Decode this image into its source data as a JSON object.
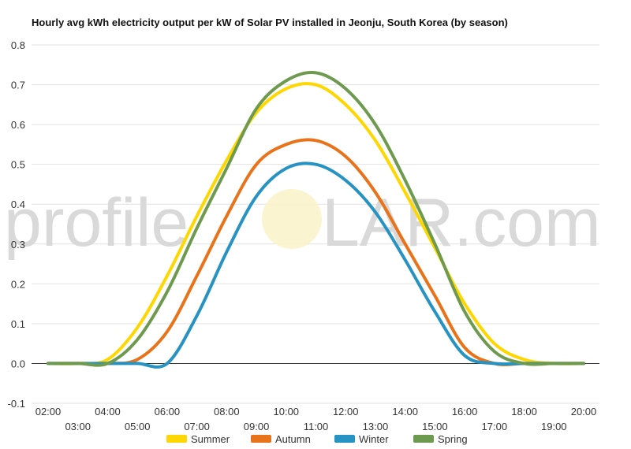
{
  "chart_data": {
    "type": "line",
    "title": "Hourly avg kWh electricity output per kW of Solar PV installed in Jeonju, South Korea (by season)",
    "xlabel": "",
    "ylabel": "",
    "x": [
      "02:00",
      "03:00",
      "04:00",
      "05:00",
      "06:00",
      "07:00",
      "08:00",
      "09:00",
      "10:00",
      "11:00",
      "12:00",
      "13:00",
      "14:00",
      "15:00",
      "16:00",
      "17:00",
      "18:00",
      "19:00",
      "20:00"
    ],
    "x_tick_labels_top": [
      "02:00",
      "04:00",
      "06:00",
      "08:00",
      "10:00",
      "12:00",
      "14:00",
      "16:00",
      "18:00",
      "20:00"
    ],
    "x_tick_labels_bottom": [
      "03:00",
      "05:00",
      "07:00",
      "09:00",
      "11:00",
      "13:00",
      "15:00",
      "17:00",
      "19:00"
    ],
    "ylim": [
      -0.1,
      0.8
    ],
    "y_ticks": [
      "-0.1",
      "0.0",
      "0.1",
      "0.2",
      "0.3",
      "0.4",
      "0.5",
      "0.6",
      "0.7",
      "0.8"
    ],
    "grid": true,
    "legend_position": "bottom",
    "series": [
      {
        "name": "Summer",
        "color": "#ffd700",
        "values": [
          0.0,
          0.0,
          0.01,
          0.09,
          0.22,
          0.37,
          0.51,
          0.63,
          0.69,
          0.7,
          0.65,
          0.56,
          0.43,
          0.29,
          0.15,
          0.05,
          0.01,
          0.0,
          0.0
        ]
      },
      {
        "name": "Autumn",
        "color": "#e8731a",
        "values": [
          0.0,
          0.0,
          0.0,
          0.01,
          0.08,
          0.22,
          0.37,
          0.5,
          0.55,
          0.56,
          0.52,
          0.43,
          0.3,
          0.17,
          0.04,
          0.0,
          0.0,
          0.0,
          0.0
        ]
      },
      {
        "name": "Winter",
        "color": "#2693c3",
        "values": [
          0.0,
          0.0,
          0.0,
          0.0,
          0.0,
          0.12,
          0.28,
          0.42,
          0.49,
          0.5,
          0.46,
          0.38,
          0.26,
          0.13,
          0.02,
          0.0,
          0.0,
          0.0,
          0.0
        ]
      },
      {
        "name": "Spring",
        "color": "#6e9a4f",
        "values": [
          0.0,
          0.0,
          0.0,
          0.06,
          0.18,
          0.34,
          0.49,
          0.64,
          0.71,
          0.73,
          0.69,
          0.6,
          0.46,
          0.3,
          0.13,
          0.03,
          0.0,
          0.0,
          0.0
        ]
      }
    ]
  },
  "watermark": {
    "left": "profile",
    "right": "LAR.com"
  }
}
